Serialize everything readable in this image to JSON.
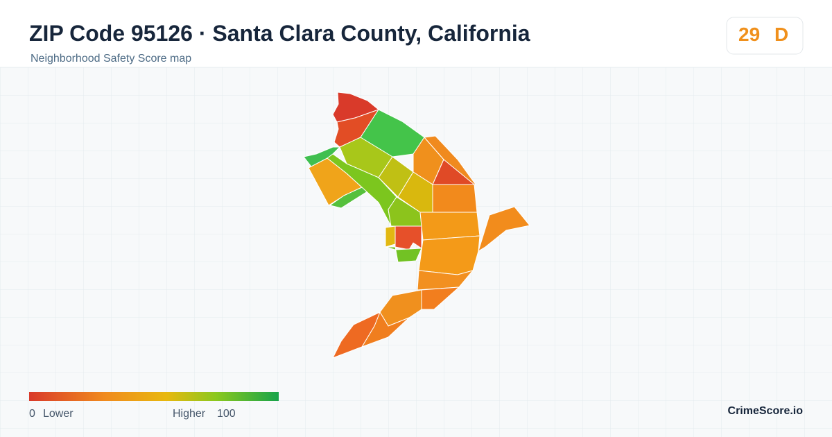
{
  "header": {
    "title": "ZIP Code 95126 · Santa Clara County, California",
    "subtitle": "Neighborhood Safety Score map"
  },
  "score": {
    "value": 29,
    "grade": "D"
  },
  "legend": {
    "min": 0,
    "min_label": "Lower",
    "max_label": "Higher",
    "max": 100
  },
  "brand": "CrimeScore.io"
}
